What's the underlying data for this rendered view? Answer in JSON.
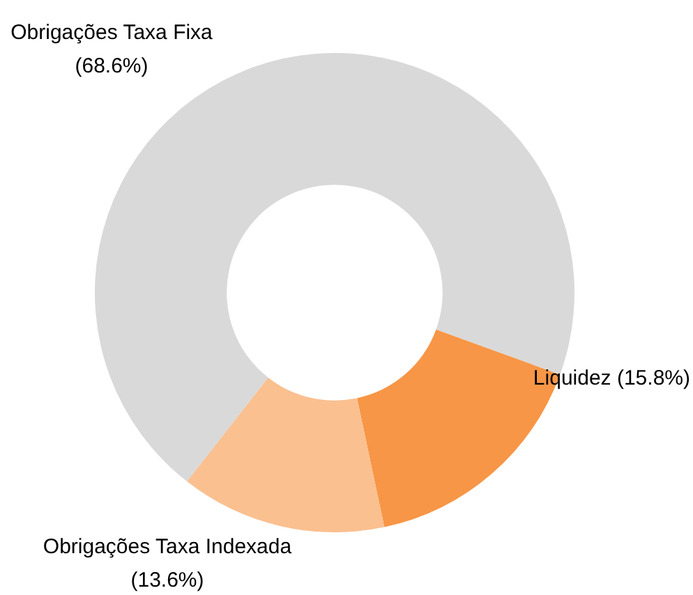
{
  "chart_data": {
    "type": "donut",
    "categories": [
      "Obrigações Taxa Fixa",
      "Liquidez",
      "Obrigações Taxa Indexada"
    ],
    "values": [
      68.6,
      15.8,
      13.6
    ],
    "colors": [
      "#d9d9d9",
      "#f79646",
      "#fac090"
    ],
    "value_labels": [
      "(68.6%)",
      "(15.8%)",
      "(13.6%)"
    ],
    "legend": false
  }
}
